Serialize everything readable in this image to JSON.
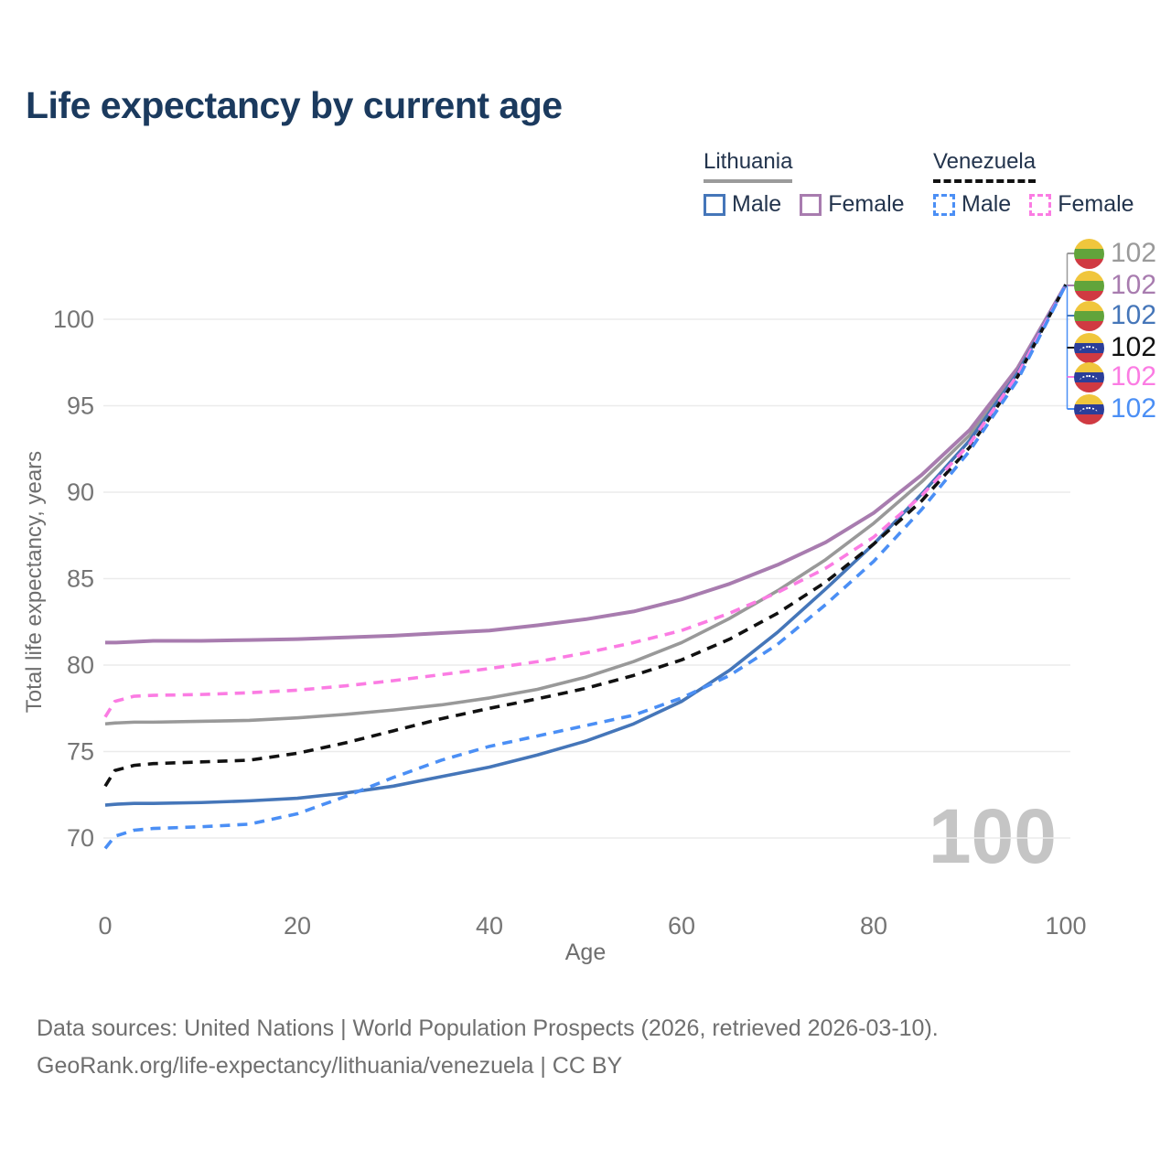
{
  "title": "Life expectancy by current age",
  "legend": {
    "groups": [
      {
        "country": "Lithuania",
        "line_style": "solid",
        "underline_color": "#9b9b9b",
        "items": [
          {
            "label": "Male",
            "color": "#4576b9",
            "dashed": false
          },
          {
            "label": "Female",
            "color": "#a87caf",
            "dashed": false
          }
        ]
      },
      {
        "country": "Venezuela",
        "line_style": "dashed",
        "underline_color": "#111111",
        "items": [
          {
            "label": "Male",
            "color": "#4b8ff5",
            "dashed": true
          },
          {
            "label": "Female",
            "color": "#fb7ce3",
            "dashed": true
          }
        ]
      }
    ]
  },
  "chart_data": {
    "type": "line",
    "title": "Life expectancy by current age",
    "xlabel": "Age",
    "ylabel": "Total life expectancy, years",
    "xlim": [
      0,
      100
    ],
    "ylim": [
      68,
      103
    ],
    "xticks": [
      0,
      20,
      40,
      60,
      80,
      100
    ],
    "yticks": [
      70,
      75,
      80,
      85,
      90,
      95,
      100
    ],
    "grid": "horizontal",
    "legend_position": "top-right",
    "x": [
      0,
      1,
      3,
      5,
      10,
      15,
      20,
      25,
      30,
      35,
      40,
      45,
      50,
      55,
      60,
      65,
      70,
      75,
      80,
      85,
      90,
      95,
      100
    ],
    "series": [
      {
        "name": "Lithuania Both sexes",
        "country": "Lithuania",
        "color": "#999999",
        "dashed": false,
        "end_label": "102",
        "values": [
          76.6,
          76.65,
          76.7,
          76.7,
          76.75,
          76.8,
          76.95,
          77.15,
          77.4,
          77.7,
          78.1,
          78.6,
          79.3,
          80.2,
          81.3,
          82.7,
          84.3,
          86.1,
          88.2,
          90.6,
          93.3,
          97.0,
          102
        ]
      },
      {
        "name": "Lithuania Female",
        "country": "Lithuania",
        "color": "#a87caf",
        "dashed": false,
        "end_label": "102",
        "values": [
          81.3,
          81.3,
          81.35,
          81.4,
          81.4,
          81.45,
          81.5,
          81.6,
          81.7,
          81.85,
          82.0,
          82.3,
          82.65,
          83.1,
          83.8,
          84.7,
          85.8,
          87.1,
          88.8,
          91.0,
          93.6,
          97.2,
          102
        ]
      },
      {
        "name": "Lithuania Male",
        "country": "Lithuania",
        "color": "#4576b9",
        "dashed": false,
        "end_label": "102",
        "values": [
          71.9,
          71.95,
          72.0,
          72.0,
          72.05,
          72.15,
          72.3,
          72.6,
          73.0,
          73.55,
          74.1,
          74.8,
          75.6,
          76.6,
          77.9,
          79.7,
          81.9,
          84.4,
          87.0,
          89.9,
          93.0,
          96.9,
          102
        ]
      },
      {
        "name": "Venezuela Both sexes",
        "country": "Venezuela",
        "color": "#111111",
        "dashed": true,
        "end_label": "102",
        "values": [
          73.0,
          73.9,
          74.2,
          74.3,
          74.4,
          74.5,
          74.9,
          75.5,
          76.2,
          76.9,
          77.5,
          78.05,
          78.65,
          79.4,
          80.3,
          81.5,
          83.0,
          84.8,
          87.0,
          89.5,
          92.6,
          96.7,
          102
        ]
      },
      {
        "name": "Venezuela Female",
        "country": "Venezuela",
        "color": "#fb7ce3",
        "dashed": true,
        "end_label": "102",
        "values": [
          77.0,
          77.9,
          78.2,
          78.25,
          78.3,
          78.4,
          78.55,
          78.8,
          79.1,
          79.45,
          79.8,
          80.2,
          80.7,
          81.3,
          82.0,
          83.0,
          84.2,
          85.6,
          87.4,
          89.8,
          92.8,
          96.8,
          102
        ]
      },
      {
        "name": "Venezuela Male",
        "country": "Venezuela",
        "color": "#4b8ff5",
        "dashed": true,
        "end_label": "102",
        "values": [
          69.4,
          70.1,
          70.45,
          70.55,
          70.65,
          70.8,
          71.4,
          72.4,
          73.5,
          74.5,
          75.3,
          75.9,
          76.5,
          77.1,
          78.1,
          79.4,
          81.2,
          83.5,
          86.0,
          89.0,
          92.4,
          96.5,
          102
        ]
      }
    ]
  },
  "end_labels": [
    {
      "value": "102",
      "color": "#9a9a9a",
      "flag": "lithuania"
    },
    {
      "value": "102",
      "color": "#a87caf",
      "flag": "lithuania"
    },
    {
      "value": "102",
      "color": "#4576b9",
      "flag": "lithuania"
    },
    {
      "value": "102",
      "color": "#111111",
      "flag": "venezuela"
    },
    {
      "value": "102",
      "color": "#fb7ce3",
      "flag": "venezuela"
    },
    {
      "value": "102",
      "color": "#4b8ff5",
      "flag": "venezuela"
    }
  ],
  "watermark": "100",
  "footer": {
    "line1": "Data sources: United Nations | World Population Prospects (2026, retrieved 2026-03-10).",
    "line2": "GeoRank.org/life-expectancy/lithuania/venezuela | CC BY"
  },
  "colors": {
    "title": "#1b3a5e",
    "axis_text": "#757575",
    "gridline": "#ebebeb",
    "watermark": "#c5c5c5",
    "flag_lithuania": [
      "#f0c63c",
      "#61a43b",
      "#d03a42"
    ],
    "flag_venezuela": [
      "#f0c63c",
      "#2b3e99",
      "#d03a42"
    ]
  }
}
